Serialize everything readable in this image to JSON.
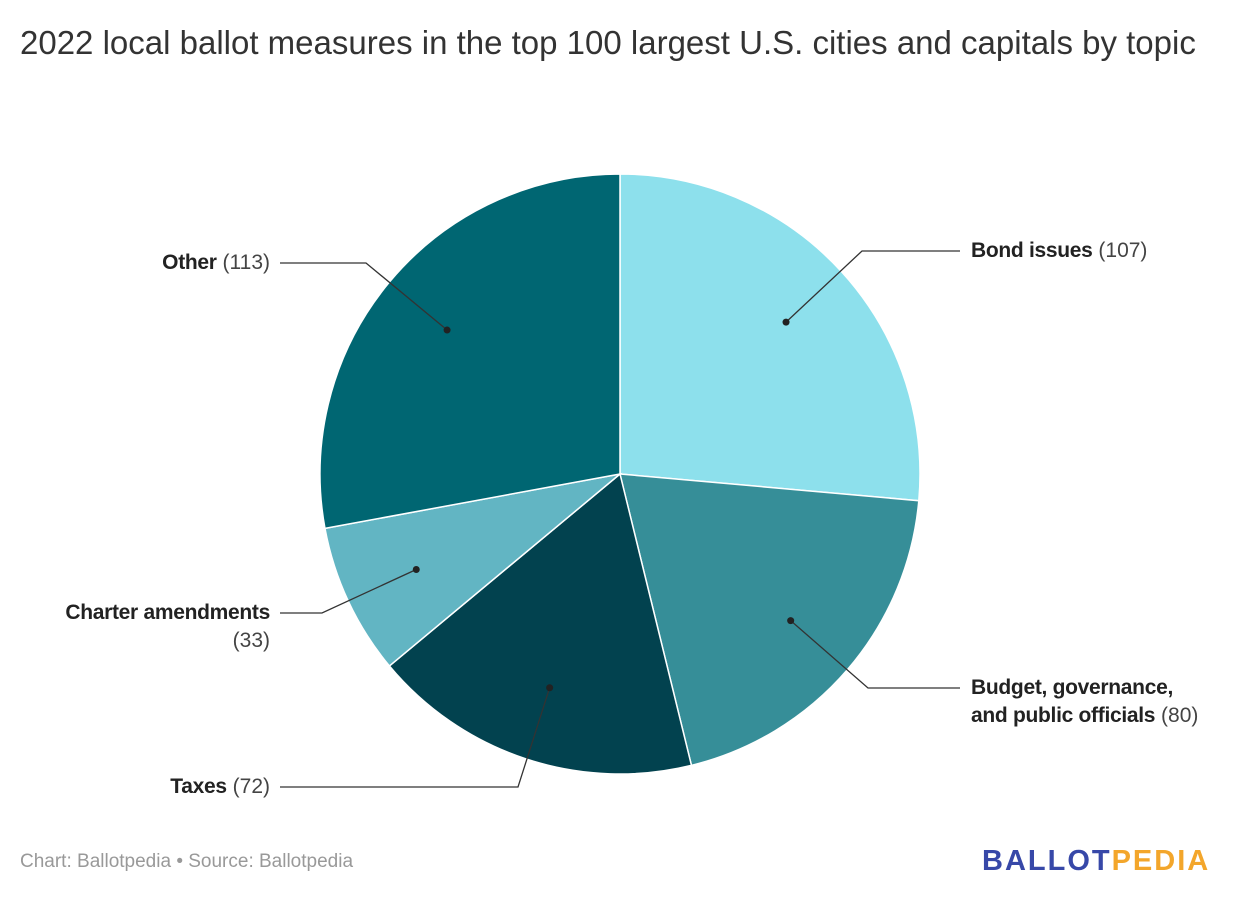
{
  "title": "2022 local ballot measures in the top 100 largest U.S. cities and capitals by topic",
  "chart_data": {
    "type": "pie",
    "title": "2022 local ballot measures in the top 100 largest U.S. cities and capitals by topic",
    "start": "top",
    "direction": "clockwise",
    "slices": [
      {
        "label": "Bond issues",
        "value": 107,
        "value_text": "(107)",
        "color": "#8de0ec"
      },
      {
        "label": "Budget, governance, and public officials",
        "label_line1": "Budget, governance,",
        "label_line2": "and public officials",
        "value": 80,
        "value_text": "(80)",
        "color": "#368e98"
      },
      {
        "label": "Taxes",
        "value": 72,
        "value_text": "(72)",
        "color": "#02424f"
      },
      {
        "label": "Charter amendments",
        "value": 33,
        "value_text": "(33)",
        "color": "#62b5c3"
      },
      {
        "label": "Other",
        "value": 113,
        "value_text": "(113)",
        "color": "#006672"
      }
    ]
  },
  "footer": "Chart: Ballotpedia • Source: Ballotpedia",
  "logo": {
    "part1": "BALLOT",
    "part2": "PEDIA",
    "color1": "#3748a8",
    "color2": "#f3a62b"
  }
}
